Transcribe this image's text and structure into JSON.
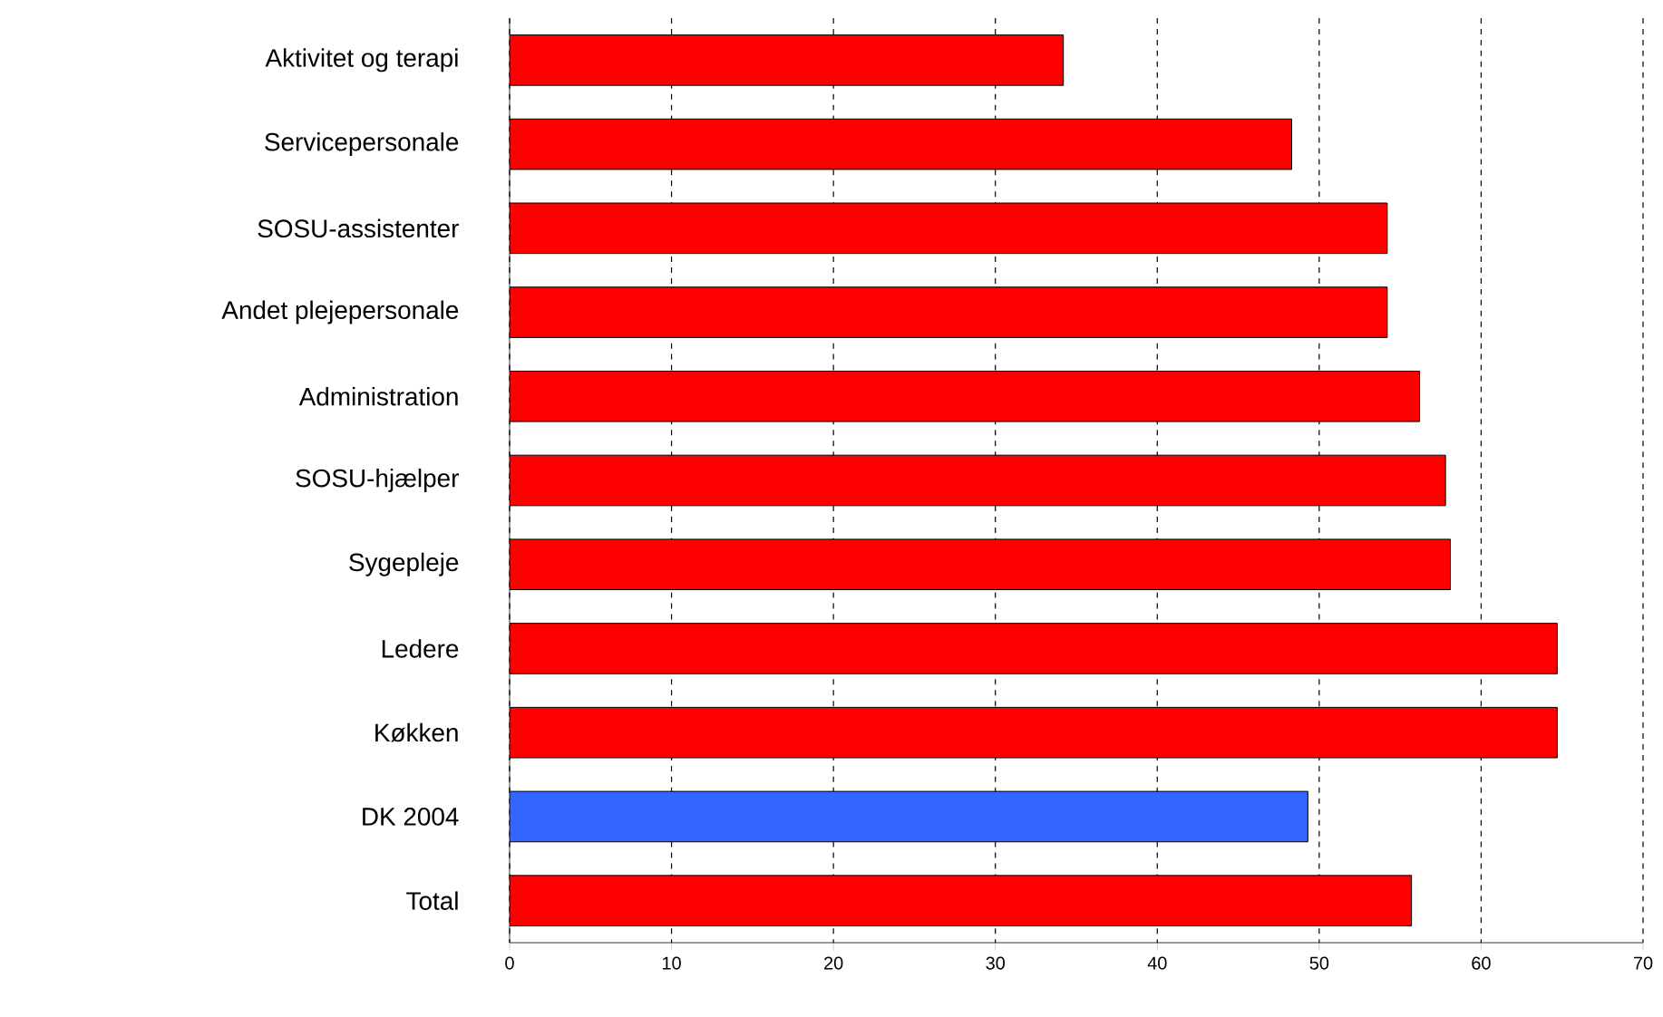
{
  "chart_data": {
    "type": "bar",
    "orientation": "horizontal",
    "categories": [
      "Aktivitet og terapi",
      "Servicepersonale",
      "SOSU-assistenter",
      "Andet plejepersonale",
      "Administration",
      "SOSU-hjælper",
      "Sygepleje",
      "Ledere",
      "Køkken",
      "DK 2004",
      "Total"
    ],
    "values": [
      34.2,
      48.3,
      54.2,
      54.2,
      56.2,
      57.8,
      58.1,
      64.7,
      64.7,
      49.3,
      55.7
    ],
    "colors": [
      "#ff0000",
      "#ff0000",
      "#ff0000",
      "#ff0000",
      "#ff0000",
      "#ff0000",
      "#ff0000",
      "#ff0000",
      "#ff0000",
      "#3366ff",
      "#ff0000"
    ],
    "xlim": [
      0,
      70
    ],
    "xticks": [
      0,
      10,
      20,
      30,
      40,
      50,
      60,
      70
    ],
    "grid": "x"
  }
}
